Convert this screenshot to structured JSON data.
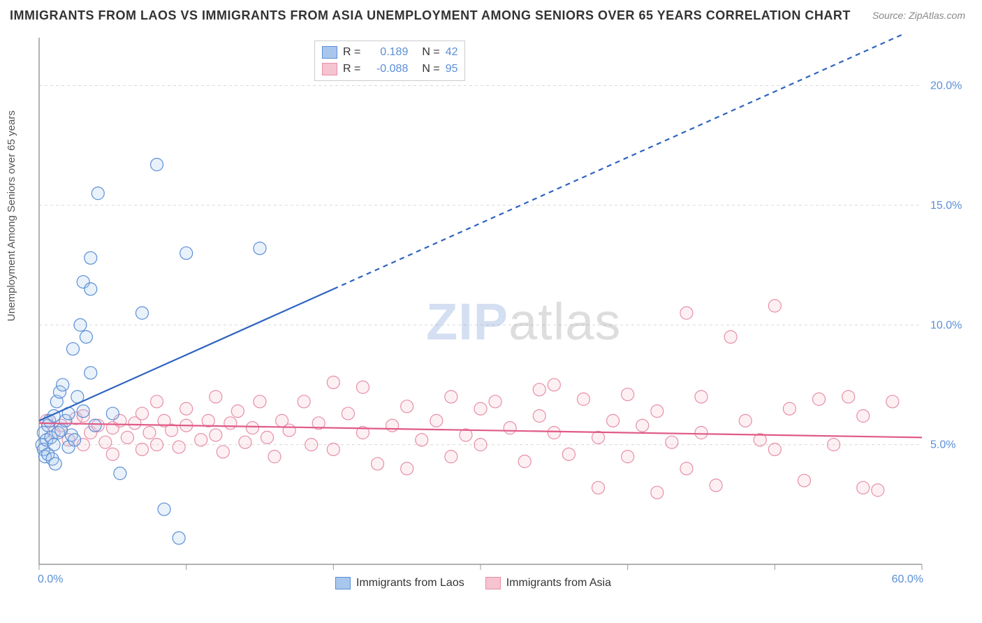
{
  "title": "IMMIGRANTS FROM LAOS VS IMMIGRANTS FROM ASIA UNEMPLOYMENT AMONG SENIORS OVER 65 YEARS CORRELATION CHART",
  "source": "Source: ZipAtlas.com",
  "ylabel": "Unemployment Among Seniors over 65 years",
  "watermark_zip": "ZIP",
  "watermark_atlas": "atlas",
  "chart": {
    "type": "scatter",
    "xlim": [
      0,
      60
    ],
    "ylim": [
      0,
      22
    ],
    "x_ticks": [
      0,
      10,
      20,
      30,
      40,
      50,
      60
    ],
    "x_tick_labels": [
      "0.0%",
      "",
      "",
      "",
      "",
      "",
      "60.0%"
    ],
    "y_ticks": [
      5,
      10,
      15,
      20
    ],
    "y_tick_labels": [
      "5.0%",
      "10.0%",
      "15.0%",
      "20.0%"
    ],
    "grid_color": "#d9d9d9",
    "axis_color": "#999",
    "marker_radius": 9,
    "marker_stroke_width": 1.2,
    "marker_fill_opacity": 0.25,
    "series": [
      {
        "name": "Immigrants from Laos",
        "label": "Immigrants from Laos",
        "color_stroke": "#5b8fd6",
        "color_fill": "#a9c6ec",
        "R": "0.189",
        "N": "42",
        "regression": {
          "x1": 0,
          "y1": 6.0,
          "x2": 60,
          "y2": 22.5,
          "solid_until_x": 20,
          "color": "#2e63c0",
          "width": 2.2,
          "dash": "7,6"
        },
        "points": [
          [
            0.2,
            5.0
          ],
          [
            0.3,
            4.8
          ],
          [
            0.3,
            5.5
          ],
          [
            0.4,
            4.5
          ],
          [
            0.5,
            5.2
          ],
          [
            0.6,
            5.8
          ],
          [
            0.6,
            4.6
          ],
          [
            0.7,
            6.0
          ],
          [
            0.8,
            5.3
          ],
          [
            0.9,
            4.4
          ],
          [
            1.0,
            6.2
          ],
          [
            1.0,
            5.0
          ],
          [
            1.2,
            6.8
          ],
          [
            1.3,
            5.5
          ],
          [
            1.4,
            7.2
          ],
          [
            1.5,
            5.6
          ],
          [
            1.6,
            7.5
          ],
          [
            1.8,
            6.0
          ],
          [
            2.0,
            4.9
          ],
          [
            2.0,
            6.3
          ],
          [
            2.2,
            5.4
          ],
          [
            2.3,
            9.0
          ],
          [
            2.4,
            5.2
          ],
          [
            2.8,
            10.0
          ],
          [
            3.0,
            11.8
          ],
          [
            3.2,
            9.5
          ],
          [
            3.0,
            6.4
          ],
          [
            3.5,
            11.5
          ],
          [
            3.5,
            12.8
          ],
          [
            3.5,
            8.0
          ],
          [
            3.8,
            5.8
          ],
          [
            4.0,
            15.5
          ],
          [
            5.0,
            6.3
          ],
          [
            5.5,
            3.8
          ],
          [
            7.0,
            10.5
          ],
          [
            8.0,
            16.7
          ],
          [
            8.5,
            2.3
          ],
          [
            9.5,
            1.1
          ],
          [
            10.0,
            13.0
          ],
          [
            15.0,
            13.2
          ],
          [
            2.6,
            7.0
          ],
          [
            1.1,
            4.2
          ]
        ]
      },
      {
        "name": "Immigrants from Asia",
        "label": "Immigrants from Asia",
        "color_stroke": "#e68fa8",
        "color_fill": "#f6c3d1",
        "R": "-0.088",
        "N": "95",
        "regression": {
          "x1": 0,
          "y1": 5.9,
          "x2": 60,
          "y2": 5.3,
          "solid_until_x": 60,
          "color": "#e05a87",
          "width": 2.2,
          "dash": ""
        },
        "points": [
          [
            0.5,
            6.0
          ],
          [
            1,
            5.5
          ],
          [
            1.5,
            5.8
          ],
          [
            2,
            5.2
          ],
          [
            2.5,
            6.1
          ],
          [
            3,
            5.0
          ],
          [
            3,
            6.2
          ],
          [
            3.5,
            5.5
          ],
          [
            4,
            5.8
          ],
          [
            4.5,
            5.1
          ],
          [
            5,
            5.7
          ],
          [
            5,
            4.6
          ],
          [
            5.5,
            6.0
          ],
          [
            6,
            5.3
          ],
          [
            6.5,
            5.9
          ],
          [
            7,
            4.8
          ],
          [
            7,
            6.3
          ],
          [
            7.5,
            5.5
          ],
          [
            8,
            5.0
          ],
          [
            8.5,
            6.0
          ],
          [
            9,
            5.6
          ],
          [
            9.5,
            4.9
          ],
          [
            10,
            5.8
          ],
          [
            10,
            6.5
          ],
          [
            11,
            5.2
          ],
          [
            11.5,
            6.0
          ],
          [
            12,
            5.4
          ],
          [
            12.5,
            4.7
          ],
          [
            13,
            5.9
          ],
          [
            13.5,
            6.4
          ],
          [
            14,
            5.1
          ],
          [
            14.5,
            5.7
          ],
          [
            15,
            6.8
          ],
          [
            15.5,
            5.3
          ],
          [
            16,
            4.5
          ],
          [
            16.5,
            6.0
          ],
          [
            17,
            5.6
          ],
          [
            18,
            6.8
          ],
          [
            18.5,
            5.0
          ],
          [
            19,
            5.9
          ],
          [
            20,
            7.6
          ],
          [
            20,
            4.8
          ],
          [
            21,
            6.3
          ],
          [
            22,
            5.5
          ],
          [
            22,
            7.4
          ],
          [
            23,
            4.2
          ],
          [
            24,
            5.8
          ],
          [
            25,
            6.6
          ],
          [
            25,
            4.0
          ],
          [
            26,
            5.2
          ],
          [
            27,
            6.0
          ],
          [
            28,
            7.0
          ],
          [
            28,
            4.5
          ],
          [
            29,
            5.4
          ],
          [
            30,
            6.5
          ],
          [
            30,
            5.0
          ],
          [
            31,
            6.8
          ],
          [
            32,
            5.7
          ],
          [
            33,
            4.3
          ],
          [
            34,
            6.2
          ],
          [
            34,
            7.3
          ],
          [
            35,
            5.5
          ],
          [
            36,
            4.6
          ],
          [
            37,
            6.9
          ],
          [
            38,
            5.3
          ],
          [
            38,
            3.2
          ],
          [
            39,
            6.0
          ],
          [
            40,
            7.1
          ],
          [
            40,
            4.5
          ],
          [
            41,
            5.8
          ],
          [
            42,
            3.0
          ],
          [
            42,
            6.4
          ],
          [
            43,
            5.1
          ],
          [
            44,
            4.0
          ],
          [
            45,
            7.0
          ],
          [
            45,
            5.5
          ],
          [
            46,
            3.3
          ],
          [
            47,
            9.5
          ],
          [
            48,
            6.0
          ],
          [
            49,
            5.2
          ],
          [
            50,
            10.8
          ],
          [
            50,
            4.8
          ],
          [
            51,
            6.5
          ],
          [
            52,
            3.5
          ],
          [
            53,
            6.9
          ],
          [
            54,
            5.0
          ],
          [
            55,
            7.0
          ],
          [
            56,
            6.2
          ],
          [
            56,
            3.2
          ],
          [
            57,
            3.1
          ],
          [
            58,
            6.8
          ],
          [
            44,
            10.5
          ],
          [
            35,
            7.5
          ],
          [
            12,
            7.0
          ],
          [
            8,
            6.8
          ]
        ]
      }
    ]
  },
  "legend_top": {
    "R_label": "R =",
    "N_label": "N ="
  }
}
